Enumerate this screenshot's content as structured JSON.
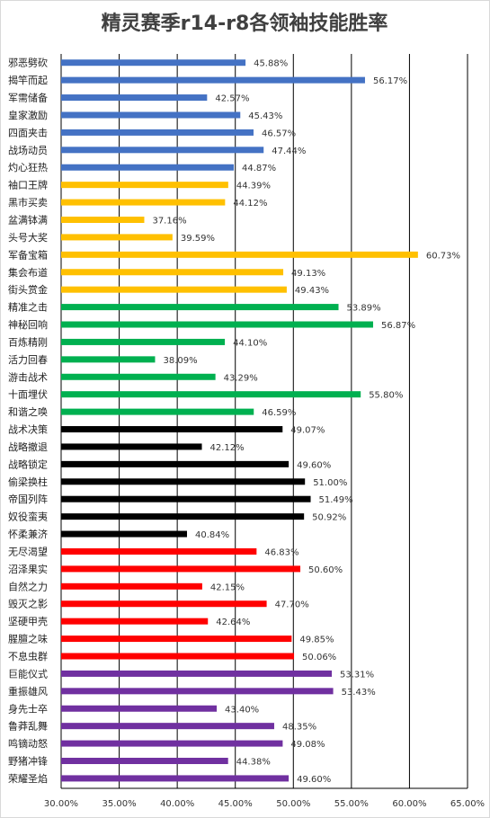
{
  "chart_data": {
    "type": "bar",
    "orientation": "horizontal",
    "title": "精灵赛季r14-r8各领袖技能胜率",
    "xlabel": "",
    "ylabel": "",
    "xlim": [
      30,
      65
    ],
    "x_ticks": [
      "30.00%",
      "35.00%",
      "40.00%",
      "45.00%",
      "50.00%",
      "55.00%",
      "60.00%",
      "65.00%"
    ],
    "grid": "vertical",
    "legend": "none",
    "categories": [
      "邪恶劈砍",
      "揭竿而起",
      "军需储备",
      "皇家激励",
      "四面夹击",
      "战场动员",
      "灼心狂热",
      "袖口王牌",
      "黑市买卖",
      "盆满钵满",
      "头号大奖",
      "军备宝箱",
      "集会布道",
      "街头赏金",
      "精准之击",
      "神秘回响",
      "百炼精刚",
      "活力回春",
      "游击战术",
      "十面埋伏",
      "和谐之唤",
      "战术决策",
      "战略撤退",
      "战略锁定",
      "偷梁换柱",
      "帝国列阵",
      "奴役蛮夷",
      "怀柔兼济",
      "无尽渴望",
      "沼泽果实",
      "自然之力",
      "毁灭之影",
      "坚硬甲壳",
      "腥膻之味",
      "不息虫群",
      "巨能仪式",
      "重振雄风",
      "身先士卒",
      "鲁莽乱舞",
      "鸣镝动怒",
      "野猪冲锋",
      "荣耀圣焰"
    ],
    "values": [
      45.88,
      56.17,
      42.57,
      45.43,
      46.57,
      47.44,
      44.87,
      44.39,
      44.12,
      37.16,
      39.59,
      60.73,
      49.13,
      49.43,
      53.89,
      56.87,
      44.1,
      38.09,
      43.29,
      55.8,
      46.59,
      49.07,
      42.12,
      49.6,
      51.0,
      51.49,
      50.92,
      40.84,
      46.83,
      50.6,
      42.15,
      47.7,
      42.64,
      49.85,
      50.06,
      53.31,
      53.43,
      43.4,
      48.35,
      49.08,
      44.38,
      49.6
    ],
    "labels": [
      "45.88%",
      "56.17%",
      "42.57%",
      "45.43%",
      "46.57%",
      "47.44%",
      "44.87%",
      "44.39%",
      "44.12%",
      "37.16%",
      "39.59%",
      "60.73%",
      "49.13%",
      "49.43%",
      "53.89%",
      "56.87%",
      "44.10%",
      "38.09%",
      "43.29%",
      "55.80%",
      "46.59%",
      "49.07%",
      "42.12%",
      "49.60%",
      "51.00%",
      "51.49%",
      "50.92%",
      "40.84%",
      "46.83%",
      "50.60%",
      "42.15%",
      "47.70%",
      "42.64%",
      "49.85%",
      "50.06%",
      "53.31%",
      "53.43%",
      "43.40%",
      "48.35%",
      "49.08%",
      "44.38%",
      "49.60%"
    ],
    "groups": [
      {
        "color": "#4472C4",
        "count": 7
      },
      {
        "color": "#FFC000",
        "count": 7
      },
      {
        "color": "#00B050",
        "count": 7
      },
      {
        "color": "#000000",
        "count": 7
      },
      {
        "color": "#FF0000",
        "count": 7
      },
      {
        "color": "#7030A0",
        "count": 7
      }
    ]
  }
}
